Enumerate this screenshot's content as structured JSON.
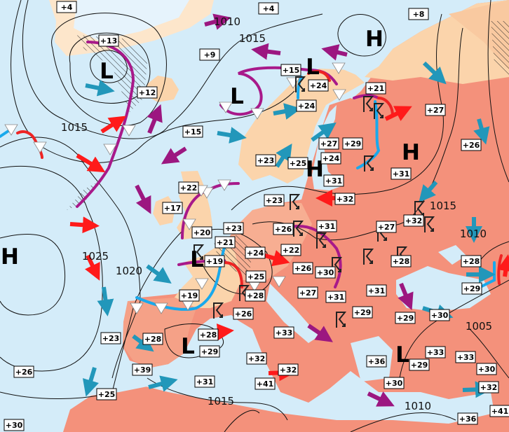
{
  "map": {
    "colors": {
      "sea": "#d4ecf9",
      "land_cool": "#fbd4ab",
      "land_warm": "#f7ae92",
      "land_hot": "#f4917b",
      "cold_front": "#19a9ec",
      "warm_front": "#ee2424",
      "occluded_front": "#a8198a",
      "cold_arrow": "#2297ba",
      "warm_arrow": "#ff1a1a",
      "occluded_arrow": "#9c1780",
      "isobar": "#111111"
    },
    "pressure_centers": [
      {
        "label": "H",
        "type": "high"
      },
      {
        "label": "L",
        "type": "low"
      },
      {
        "label": "L",
        "type": "low"
      },
      {
        "label": "L",
        "type": "low"
      },
      {
        "label": "H",
        "type": "high"
      },
      {
        "label": "H",
        "type": "high"
      },
      {
        "label": "H",
        "type": "high"
      },
      {
        "label": "L",
        "type": "low"
      },
      {
        "label": "L",
        "type": "low"
      },
      {
        "label": "L",
        "type": "low"
      }
    ],
    "isobar_labels": [
      "1010",
      "1015",
      "1015",
      "1025",
      "1020",
      "1015",
      "1010",
      "1005",
      "1015",
      "1010"
    ],
    "temperatures": [
      "+4",
      "+4",
      "+8",
      "+13",
      "+9",
      "+15",
      "+24",
      "+12",
      "+21",
      "+27",
      "+24",
      "+15",
      "+26",
      "+27",
      "+29",
      "+24",
      "+23",
      "+25",
      "+31",
      "+31",
      "+32",
      "+22",
      "+17",
      "+23",
      "+32",
      "+23",
      "+20",
      "+26",
      "+31",
      "+27",
      "+21",
      "+24",
      "+22",
      "+19",
      "+28",
      "+28",
      "+26",
      "+30",
      "+25",
      "+27",
      "+31",
      "+31",
      "+29",
      "+19",
      "+28",
      "+26",
      "+29",
      "+29",
      "+30",
      "+33",
      "+23",
      "+28",
      "+28",
      "+29",
      "+36",
      "+33",
      "+33",
      "+30",
      "+32",
      "+32",
      "+29",
      "+26",
      "+39",
      "+41",
      "+31",
      "+30",
      "+32",
      "+25",
      "+30",
      "+36",
      "+41"
    ],
    "symbols": [
      "thunderstorm-icon",
      "hatched-precipitation-area"
    ]
  }
}
